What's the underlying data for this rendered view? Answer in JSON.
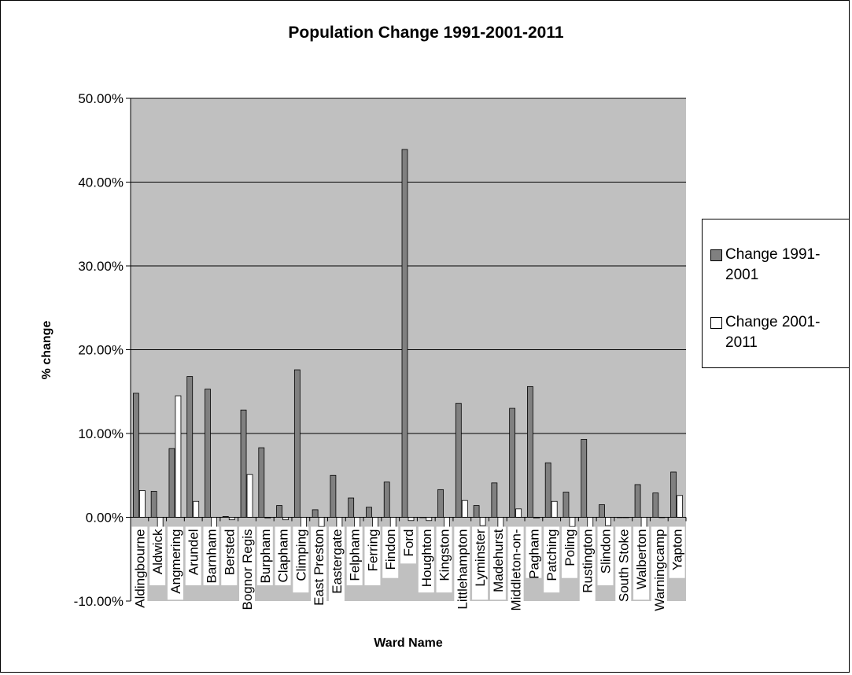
{
  "chart_data": {
    "type": "bar",
    "title": "Population Change 1991-2001-2011",
    "xlabel": "Ward Name",
    "ylabel": "% change",
    "ylim": [
      -10,
      50
    ],
    "yticks": [
      -10,
      0,
      10,
      20,
      30,
      40,
      50
    ],
    "ytick_labels": [
      "-10.00%",
      "0.00%",
      "10.00%",
      "20.00%",
      "30.00%",
      "40.00%",
      "50.00%"
    ],
    "categories": [
      "Aldingbourne",
      "Aldwick",
      "Angmering",
      "Arundel",
      "Barnham",
      "Bersted",
      "Bognor Regis",
      "Burpham",
      "Clapham",
      "Climping",
      "East Preston",
      "Eastergate",
      "Felpham",
      "Ferring",
      "Findon",
      "Ford",
      "Houghton",
      "Kingston",
      "Littlehampton",
      "Lyminster",
      "Madehurst",
      "Middleton-on-",
      "Pagham",
      "Patching",
      "Poling",
      "Rustington",
      "Slindon",
      "South Stoke",
      "Walberton",
      "Warningcamp",
      "Yapton"
    ],
    "series": [
      {
        "name": "Change 1991-2001",
        "values": [
          14.8,
          3.1,
          8.2,
          16.8,
          15.3,
          0.1,
          12.8,
          8.3,
          1.4,
          17.6,
          0.9,
          5.0,
          2.3,
          1.2,
          4.2,
          43.9,
          0.0,
          3.3,
          13.6,
          1.4,
          4.1,
          13.0,
          15.6,
          6.5,
          3.0,
          9.3,
          1.5,
          0.0,
          3.9,
          2.9,
          5.4
        ]
      },
      {
        "name": "Change 2001-2011",
        "values": [
          3.2,
          -1.5,
          14.5,
          1.9,
          -1.4,
          -0.3,
          5.1,
          -0.1,
          -0.3,
          -1.2,
          -1.1,
          -1.2,
          -1.2,
          -1.2,
          -1.2,
          -0.4,
          -0.4,
          -1.2,
          2.0,
          -1.0,
          -1.4,
          1.0,
          -0.1,
          1.9,
          -1.1,
          -1.2,
          -1.0,
          0.0,
          -1.5,
          0.0,
          2.6
        ]
      }
    ],
    "grid": true,
    "legend": "right",
    "colors": {
      "plot_background": "#c0c0c0",
      "series1": "#808080",
      "series2": "#ffffff",
      "gridline": "#000000"
    }
  }
}
